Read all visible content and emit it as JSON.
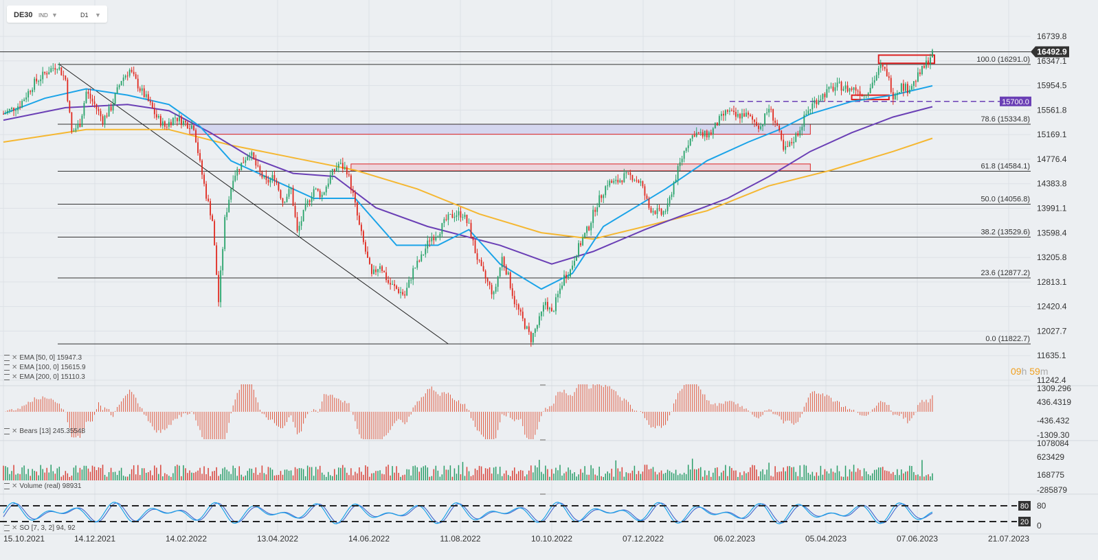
{
  "symbol": {
    "name": "DE30",
    "type": "IND",
    "interval": "D1"
  },
  "countdown": {
    "hours": "09",
    "h_unit": "h",
    "minutes": "59",
    "m_unit": "m"
  },
  "indicators": [
    {
      "label": "EMA [50, 0]",
      "value": "15947.3"
    },
    {
      "label": "EMA [100, 0]",
      "value": "15615.9"
    },
    {
      "label": "EMA [200, 0]",
      "value": "15110.3"
    }
  ],
  "bears": {
    "label": "Bears [13]",
    "value": "245.35548"
  },
  "volume": {
    "label": "Volume (real)",
    "value": "98931"
  },
  "so": {
    "label": "SO [7, 3, 2]",
    "value": "94, 92"
  },
  "colors": {
    "up": "#26a269",
    "down": "#e0281e",
    "ema50": "#1aa3e8",
    "ema100": "#6a3fb5",
    "ema200": "#f5b731",
    "bg": "#eceff2",
    "price_tag": "#333333",
    "level_tag": "#6a3fb5"
  },
  "chart_data": [
    {
      "type": "line",
      "title": "DE30",
      "series_type": "candlestick",
      "ylim": [
        11242.4,
        16739.8
      ],
      "y_ticks": [
        "16739.8",
        "16347.1",
        "15954.5",
        "15561.8",
        "15169.1",
        "14776.4",
        "14383.8",
        "13991.1",
        "13598.4",
        "13205.8",
        "12813.1",
        "12420.4",
        "12027.7",
        "11635.1",
        "11242.4"
      ],
      "x_ticks": [
        "15.10.2021",
        "14.12.2021",
        "14.02.2022",
        "13.04.2022",
        "14.06.2022",
        "11.08.2022",
        "10.10.2022",
        "07.12.2022",
        "06.02.2023",
        "05.04.2023",
        "07.06.2023",
        "21.07.2023"
      ],
      "last_price": "16492.9",
      "price_path": [
        [
          0,
          15500
        ],
        [
          8,
          15650
        ],
        [
          15,
          16000
        ],
        [
          22,
          16200
        ],
        [
          26,
          16280
        ],
        [
          30,
          16050
        ],
        [
          33,
          15200
        ],
        [
          37,
          15350
        ],
        [
          40,
          15850
        ],
        [
          44,
          15650
        ],
        [
          48,
          15400
        ],
        [
          52,
          15600
        ],
        [
          57,
          16050
        ],
        [
          61,
          16200
        ],
        [
          66,
          15900
        ],
        [
          70,
          15700
        ],
        [
          74,
          15450
        ],
        [
          78,
          15300
        ],
        [
          83,
          15450
        ],
        [
          88,
          15350
        ],
        [
          92,
          15300
        ],
        [
          95,
          14700
        ],
        [
          98,
          14200
        ],
        [
          101,
          13800
        ],
        [
          104,
          12500
        ],
        [
          107,
          13800
        ],
        [
          111,
          14500
        ],
        [
          115,
          14700
        ],
        [
          119,
          14900
        ],
        [
          123,
          14600
        ],
        [
          127,
          14400
        ],
        [
          131,
          14500
        ],
        [
          135,
          14100
        ],
        [
          139,
          14300
        ],
        [
          142,
          13600
        ],
        [
          146,
          14000
        ],
        [
          150,
          14300
        ],
        [
          154,
          14200
        ],
        [
          158,
          14500
        ],
        [
          162,
          14700
        ],
        [
          166,
          14600
        ],
        [
          169,
          14200
        ],
        [
          172,
          13700
        ],
        [
          175,
          13300
        ],
        [
          178,
          12900
        ],
        [
          182,
          13100
        ],
        [
          186,
          12800
        ],
        [
          190,
          12700
        ],
        [
          194,
          12600
        ],
        [
          198,
          13000
        ],
        [
          202,
          13200
        ],
        [
          206,
          13500
        ],
        [
          210,
          13600
        ],
        [
          214,
          13800
        ],
        [
          218,
          13900
        ],
        [
          222,
          13900
        ],
        [
          225,
          13700
        ],
        [
          228,
          13300
        ],
        [
          231,
          13000
        ],
        [
          234,
          12800
        ],
        [
          237,
          12600
        ],
        [
          241,
          13200
        ],
        [
          244,
          12900
        ],
        [
          247,
          12500
        ],
        [
          251,
          12200
        ],
        [
          255,
          11900
        ],
        [
          259,
          12200
        ],
        [
          262,
          12500
        ],
        [
          265,
          12300
        ],
        [
          268,
          12600
        ],
        [
          271,
          12900
        ],
        [
          274,
          13000
        ],
        [
          277,
          13300
        ],
        [
          280,
          13500
        ],
        [
          283,
          13700
        ],
        [
          286,
          14000
        ],
        [
          289,
          14200
        ],
        [
          292,
          14400
        ],
        [
          296,
          14400
        ],
        [
          300,
          14500
        ],
        [
          304,
          14500
        ],
        [
          308,
          14400
        ],
        [
          312,
          14000
        ],
        [
          315,
          13950
        ],
        [
          318,
          13900
        ],
        [
          321,
          14000
        ],
        [
          324,
          14400
        ],
        [
          327,
          14700
        ],
        [
          330,
          15000
        ],
        [
          334,
          15200
        ],
        [
          338,
          15150
        ],
        [
          342,
          15200
        ],
        [
          346,
          15400
        ],
        [
          350,
          15550
        ],
        [
          354,
          15450
        ],
        [
          358,
          15500
        ],
        [
          362,
          15400
        ],
        [
          366,
          15300
        ],
        [
          370,
          15600
        ],
        [
          374,
          15300
        ],
        [
          377,
          14900
        ],
        [
          380,
          15000
        ],
        [
          384,
          15200
        ],
        [
          388,
          15500
        ],
        [
          392,
          15700
        ],
        [
          396,
          15800
        ],
        [
          400,
          15900
        ],
        [
          404,
          15950
        ],
        [
          408,
          15900
        ],
        [
          412,
          15900
        ],
        [
          416,
          15800
        ],
        [
          420,
          16000
        ],
        [
          424,
          16250
        ],
        [
          427,
          16150
        ],
        [
          430,
          15800
        ],
        [
          434,
          15950
        ],
        [
          437,
          15900
        ],
        [
          440,
          16000
        ],
        [
          443,
          16150
        ],
        [
          446,
          16300
        ],
        [
          448,
          16420
        ],
        [
          449,
          16480
        ]
      ],
      "ema50_path": [
        [
          0,
          15500
        ],
        [
          20,
          15750
        ],
        [
          40,
          15900
        ],
        [
          60,
          15800
        ],
        [
          80,
          15650
        ],
        [
          95,
          15300
        ],
        [
          110,
          14750
        ],
        [
          130,
          14450
        ],
        [
          150,
          14150
        ],
        [
          170,
          14150
        ],
        [
          190,
          13400
        ],
        [
          210,
          13400
        ],
        [
          225,
          13650
        ],
        [
          240,
          13100
        ],
        [
          260,
          12700
        ],
        [
          275,
          12950
        ],
        [
          290,
          13700
        ],
        [
          305,
          14000
        ],
        [
          320,
          14300
        ],
        [
          340,
          14750
        ],
        [
          360,
          15050
        ],
        [
          375,
          15250
        ],
        [
          390,
          15500
        ],
        [
          410,
          15700
        ],
        [
          430,
          15800
        ],
        [
          449,
          15950
        ]
      ],
      "ema100_path": [
        [
          0,
          15400
        ],
        [
          30,
          15600
        ],
        [
          60,
          15650
        ],
        [
          80,
          15550
        ],
        [
          100,
          15200
        ],
        [
          120,
          14800
        ],
        [
          140,
          14550
        ],
        [
          160,
          14500
        ],
        [
          180,
          14000
        ],
        [
          205,
          13700
        ],
        [
          240,
          13400
        ],
        [
          265,
          13100
        ],
        [
          285,
          13300
        ],
        [
          310,
          13650
        ],
        [
          330,
          13900
        ],
        [
          350,
          14150
        ],
        [
          370,
          14500
        ],
        [
          390,
          14900
        ],
        [
          410,
          15200
        ],
        [
          430,
          15450
        ],
        [
          449,
          15615
        ]
      ],
      "ema200_path": [
        [
          0,
          15050
        ],
        [
          40,
          15250
        ],
        [
          80,
          15250
        ],
        [
          110,
          15000
        ],
        [
          140,
          14800
        ],
        [
          170,
          14600
        ],
        [
          200,
          14300
        ],
        [
          230,
          13900
        ],
        [
          260,
          13600
        ],
        [
          285,
          13500
        ],
        [
          310,
          13700
        ],
        [
          340,
          13950
        ],
        [
          370,
          14350
        ],
        [
          400,
          14600
        ],
        [
          430,
          14900
        ],
        [
          449,
          15110
        ]
      ],
      "fibonacci": [
        {
          "label": "100.0 (16291.0)",
          "level": 16291.0
        },
        {
          "label": "78.6 (15334.8)",
          "level": 15334.8
        },
        {
          "label": "61.8 (14584.1)",
          "level": 14584.1
        },
        {
          "label": "50.0 (14056.8)",
          "level": 14056.8
        },
        {
          "label": "38.2 (13529.6)",
          "level": 13529.6
        },
        {
          "label": "23.6 (12877.2)",
          "level": 12877.2
        },
        {
          "label": "0.0 (11822.7)",
          "level": 11822.7
        }
      ],
      "horizontal_level": {
        "label": "15700.0",
        "level": 15700.0
      },
      "resistance_line": 16492.9,
      "zones": [
        {
          "from_x": 90,
          "to_x": 390,
          "low": 15175,
          "high": 15335
        },
        {
          "from_x": 168,
          "to_x": 390,
          "low": 14590,
          "high": 14700
        },
        {
          "from_x": 423,
          "to_x": 450,
          "low": 16310,
          "high": 16440
        },
        {
          "from_x": 410,
          "to_x": 428,
          "low": 15730,
          "high": 15800
        }
      ],
      "trendline": [
        [
          27,
          16291
        ],
        [
          215,
          11822.7
        ]
      ]
    },
    {
      "type": "bar",
      "title": "Bears [13]",
      "y_ticks": [
        "1309.296",
        "436.4319",
        "-436.432",
        "-1309.30"
      ],
      "ylim": [
        -1309.3,
        1309.296
      ]
    },
    {
      "type": "bar",
      "title": "Volume (real)",
      "y_ticks": [
        "1078084",
        "623429",
        "168775",
        "-285879"
      ],
      "ylim": [
        -285879,
        1078084
      ]
    },
    {
      "type": "line",
      "title": "SO [7, 3, 2]",
      "y_ticks": [
        "80",
        "0"
      ],
      "levels": [
        "80",
        "20"
      ],
      "ylim": [
        0,
        100
      ]
    }
  ]
}
